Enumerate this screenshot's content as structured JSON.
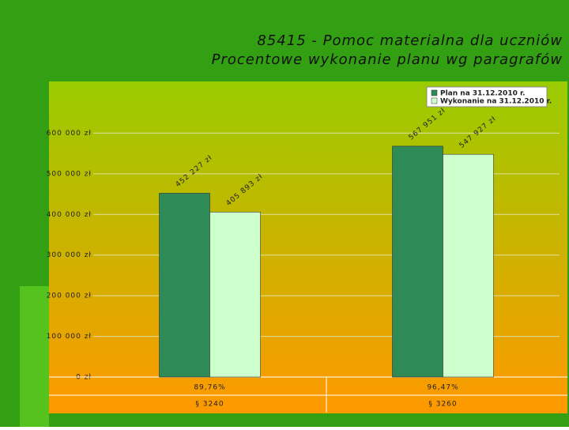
{
  "chart_data": {
    "type": "bar",
    "title": "85415 - Pomoc materialna dla uczniów",
    "subtitle": "Procentowe wykonanie planu wg paragrafów",
    "categories": [
      "§ 3240",
      "§ 3260"
    ],
    "category_sublabels": [
      "89,76%",
      "96,47%"
    ],
    "series": [
      {
        "name": "Plan na 31.12.2010 r.",
        "color": "#2e8b57",
        "values": [
          452227,
          567951
        ],
        "value_labels": [
          "452 227 zł",
          "567 951 zł"
        ]
      },
      {
        "name": "Wykonanie na 31.12.2010 r.",
        "color": "#ccffcc",
        "values": [
          405893,
          547927
        ],
        "value_labels": [
          "405 893 zł",
          "547 927 zł"
        ]
      }
    ],
    "ylim": [
      0,
      700000
    ],
    "yticks": [
      {
        "value": 0,
        "label": "0 zł"
      },
      {
        "value": 100000,
        "label": "100 000 zł"
      },
      {
        "value": 200000,
        "label": "200 000 zł"
      },
      {
        "value": 300000,
        "label": "300 000 zł"
      },
      {
        "value": 400000,
        "label": "400 000 zł"
      },
      {
        "value": 500000,
        "label": "500 000 zł"
      },
      {
        "value": 600000,
        "label": "600 000 zł"
      }
    ],
    "grid": true,
    "legend": "top-right"
  }
}
